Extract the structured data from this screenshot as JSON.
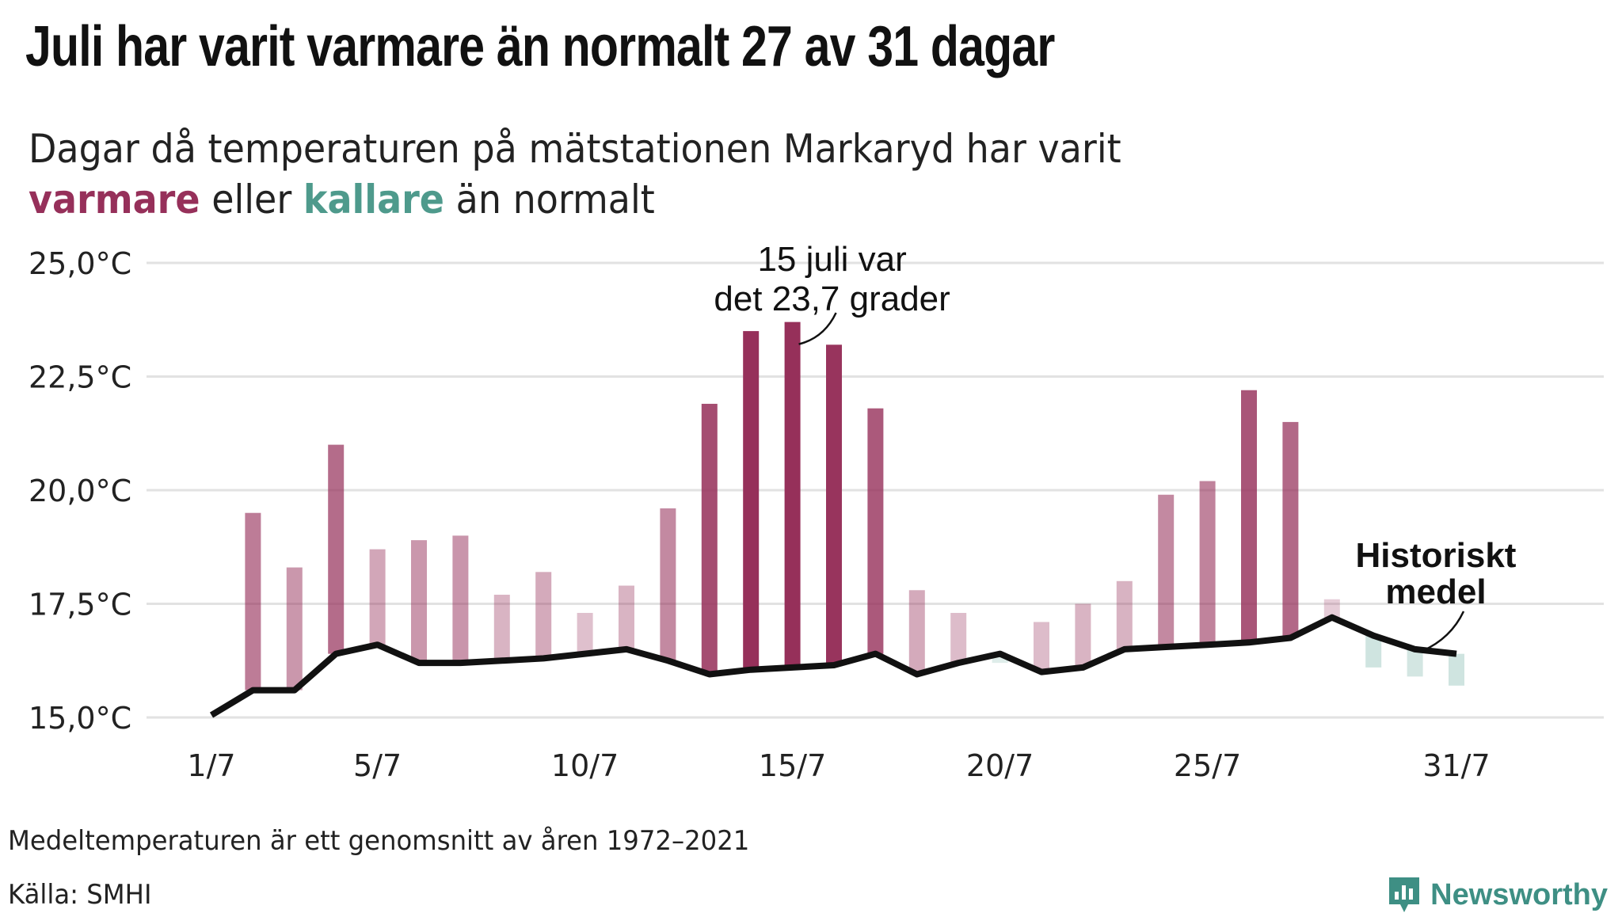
{
  "title": "Juli har varit varmare än normalt 27 av 31 dagar",
  "subtitle": {
    "line1": "Dagar då temperaturen på mätstationen Markaryd har varit",
    "warm_word": "varmare",
    "middle": " eller ",
    "cold_word": "kallare",
    "end": " än normalt"
  },
  "colors": {
    "warm": "#96305a",
    "cold": "#4e9a8c",
    "line": "#111111",
    "grid": "#e2e2e2",
    "brand": "#3e8f84"
  },
  "chart_data": {
    "type": "bar",
    "x": [
      1,
      2,
      3,
      4,
      5,
      6,
      7,
      8,
      9,
      10,
      11,
      12,
      13,
      14,
      15,
      16,
      17,
      18,
      19,
      20,
      21,
      22,
      23,
      24,
      25,
      26,
      27,
      28,
      29,
      30,
      31
    ],
    "x_unit": "juli",
    "ylim": [
      15.0,
      25.0
    ],
    "yticks": [
      15.0,
      17.5,
      20.0,
      22.5,
      25.0
    ],
    "ytick_labels": [
      "15,0°C",
      "17,5°C",
      "20,0°C",
      "22,5°C",
      "25,0°C"
    ],
    "xticks": [
      1,
      5,
      10,
      15,
      20,
      25,
      31
    ],
    "xtick_labels": [
      "1/7",
      "5/7",
      "10/7",
      "15/7",
      "20/7",
      "25/7",
      "31/7"
    ],
    "grid": true,
    "series": [
      {
        "type": "bar",
        "values": [
          15.1,
          19.5,
          18.3,
          21.0,
          18.7,
          18.9,
          19.0,
          17.7,
          18.2,
          17.3,
          17.9,
          19.6,
          21.9,
          23.5,
          23.7,
          23.2,
          21.8,
          17.8,
          17.3,
          16.2,
          17.1,
          17.5,
          18.0,
          19.9,
          20.2,
          22.2,
          21.5,
          17.6,
          16.1,
          15.9,
          15.7
        ]
      },
      {
        "name": "Historiskt medel",
        "type": "line",
        "values": [
          15.05,
          15.6,
          15.6,
          16.4,
          16.6,
          16.2,
          16.2,
          16.25,
          16.3,
          16.4,
          16.5,
          16.25,
          15.95,
          16.05,
          16.1,
          16.15,
          16.4,
          15.95,
          16.2,
          16.4,
          16.0,
          16.1,
          16.5,
          16.55,
          16.6,
          16.65,
          16.75,
          17.2,
          16.8,
          16.5,
          16.4
        ]
      }
    ],
    "annotations": [
      {
        "day": 15,
        "value": 23.7,
        "line1": "15 juli var",
        "line2": "det 23,7 grader"
      },
      {
        "day": 30,
        "line1": "Historiskt",
        "line2": "medel"
      }
    ]
  },
  "footnote": "Medeltemperaturen är ett genomsnitt av åren 1972–2021",
  "source": "Källa: SMHI",
  "brand": {
    "name": "Newsworthy",
    "icon": "newsworthy-logo-icon"
  }
}
